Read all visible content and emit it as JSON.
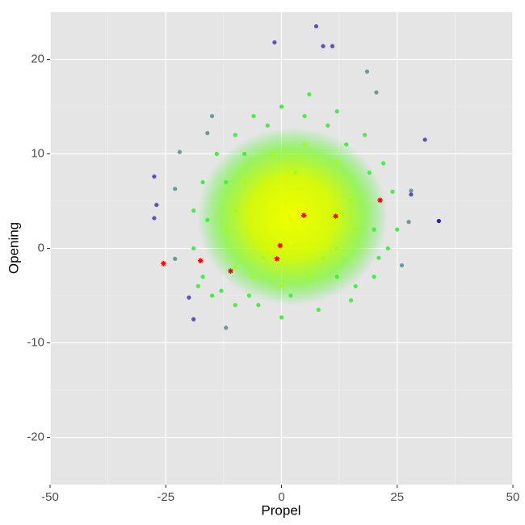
{
  "chart_data": {
    "type": "scatter",
    "x_label": "Propel",
    "y_label": "Opening",
    "xlim": [
      -50,
      50
    ],
    "ylim": [
      -25,
      25
    ],
    "xticks": [
      -50,
      -25,
      0,
      25,
      50
    ],
    "yticks": [
      -20,
      -10,
      0,
      10,
      20
    ],
    "xminor": [
      -37.5,
      -12.5,
      12.5,
      37.5
    ],
    "yminor": [
      -25,
      -15,
      -5,
      5,
      15,
      25
    ],
    "grid": true,
    "series": [
      {
        "color": "#44f040",
        "marker": "dot",
        "x": [
          -18,
          -15,
          -10,
          -5,
          0,
          8,
          15,
          20,
          23,
          25,
          24,
          22,
          18,
          12,
          6,
          0,
          -6,
          -10,
          -14,
          -17,
          -19,
          -19,
          -17,
          -13,
          16,
          20,
          -8,
          10,
          -3,
          21,
          14,
          -16,
          2,
          -7,
          12,
          19,
          -12,
          5
        ],
        "y": [
          -4,
          -5,
          -6,
          -6,
          -7.3,
          -6.5,
          -5.5,
          -3,
          0,
          2,
          6,
          9,
          12,
          14.5,
          16.3,
          15,
          14,
          12,
          10,
          7,
          4,
          0,
          -3,
          -4.5,
          -4,
          2,
          10,
          13,
          13,
          -1,
          11,
          3,
          -5,
          -5,
          -3,
          8,
          7,
          14
        ]
      },
      {
        "color": "#a8f820",
        "marker": "dot",
        "x": [
          -12,
          -10,
          -6,
          0,
          6,
          12,
          15,
          12,
          5,
          -2,
          -8,
          -10,
          16,
          -4,
          9,
          3
        ],
        "y": [
          2,
          -2,
          -3,
          -4,
          -3,
          0,
          5,
          9,
          11,
          10,
          7,
          4,
          2,
          -1,
          -1,
          8
        ]
      },
      {
        "color": "#e4fc00",
        "marker": "dot",
        "x": [
          -2,
          0,
          2,
          4,
          3,
          6,
          1,
          -1,
          5,
          2,
          7,
          0
        ],
        "y": [
          3,
          1,
          3,
          5,
          2,
          3,
          5,
          4,
          1,
          0.5,
          4,
          6
        ]
      },
      {
        "color": "#6a9a9a",
        "marker": "dot",
        "x": [
          18.5,
          20.5,
          -15,
          -16,
          -22,
          -23,
          28,
          27.5,
          26,
          -23,
          -12
        ],
        "y": [
          18.7,
          16.5,
          14,
          12.2,
          10.2,
          6.3,
          6.1,
          2.8,
          -1.8,
          -1.1,
          -8.4
        ]
      },
      {
        "color": "#5a50c8",
        "marker": "dot",
        "x": [
          31,
          -27.5,
          -27,
          -27.5,
          -20,
          -19,
          7.5,
          -1.5,
          9,
          11,
          28
        ],
        "y": [
          11.5,
          7.6,
          4.6,
          3.2,
          -5.2,
          -7.5,
          23.5,
          21.8,
          21.4,
          21.4,
          5.7
        ]
      },
      {
        "color": "#3010f0",
        "marker": "dot",
        "x": [
          34
        ],
        "y": [
          2.9
        ]
      },
      {
        "color": "#ff0000",
        "marker": "asterisk",
        "x": [
          -25.5,
          -17.5,
          -11,
          -1,
          -0.3,
          4.8,
          11.7,
          21.3
        ],
        "y": [
          -1.6,
          -1.3,
          -2.4,
          -1.1,
          0.3,
          3.5,
          3.4,
          5.1
        ]
      }
    ]
  }
}
